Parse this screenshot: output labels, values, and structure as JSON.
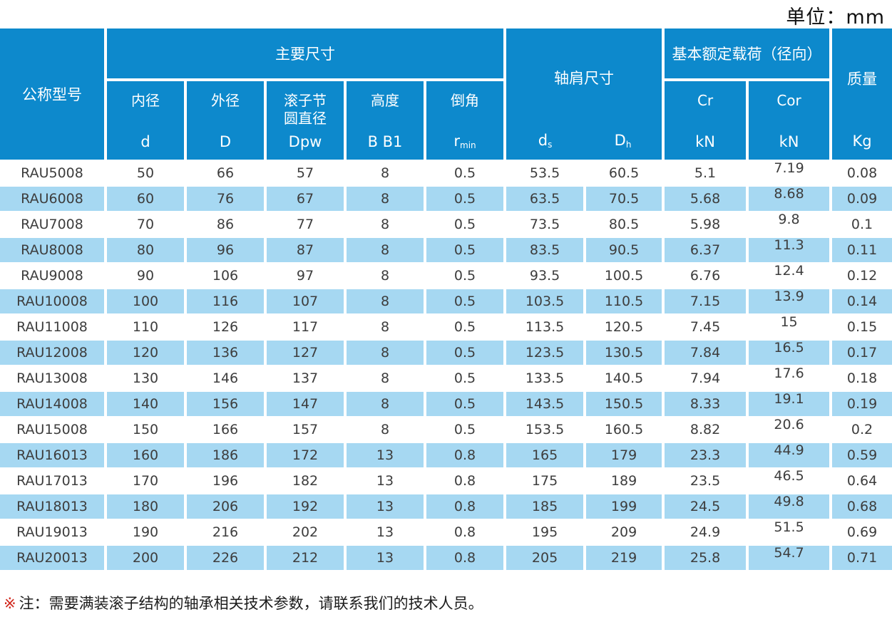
{
  "unit_label": "单位：mm",
  "table": {
    "header": {
      "model": "公称型号",
      "main_dims": "主要尺寸",
      "shoulder_dims": "轴肩尺寸",
      "load_rating": "基本额定载荷（径向）",
      "mass": "质量",
      "mass_unit": "Kg",
      "sub_cols": {
        "inner": {
          "label": "内径",
          "symbol": "d"
        },
        "outer": {
          "label": "外径",
          "symbol": "D"
        },
        "pitch": {
          "label": "滚子节\n圆直径",
          "symbol": "Dpw"
        },
        "height": {
          "label": "高度",
          "symbol": "B  B1"
        },
        "chamfer": {
          "label": "倒角",
          "symbol_main": "r",
          "symbol_sub": "min"
        }
      },
      "shoulder_sub": {
        "ds_main": "d",
        "ds_sub": "s",
        "dh_main": "D",
        "dh_sub": "h"
      },
      "cr": {
        "label": "Cr",
        "unit": "kN"
      },
      "cor": {
        "label": "Cor",
        "unit": "kN"
      }
    },
    "col_keys": [
      "model",
      "d",
      "D",
      "Dpw",
      "B-B1",
      "r-min",
      "ds",
      "Dh",
      "Cr",
      "Cor",
      "Kg"
    ],
    "rows": [
      [
        "RAU5008",
        "50",
        "66",
        "57",
        "8",
        "0.5",
        "53.5",
        "60.5",
        "5.1",
        "7.19",
        "0.08"
      ],
      [
        "RAU6008",
        "60",
        "76",
        "67",
        "8",
        "0.5",
        "63.5",
        "70.5",
        "5.68",
        "8.68",
        "0.09"
      ],
      [
        "RAU7008",
        "70",
        "86",
        "77",
        "8",
        "0.5",
        "73.5",
        "80.5",
        "5.98",
        "9.8",
        "0.1"
      ],
      [
        "RAU8008",
        "80",
        "96",
        "87",
        "8",
        "0.5",
        "83.5",
        "90.5",
        "6.37",
        "11.3",
        "0.11"
      ],
      [
        "RAU9008",
        "90",
        "106",
        "97",
        "8",
        "0.5",
        "93.5",
        "100.5",
        "6.76",
        "12.4",
        "0.12"
      ],
      [
        "RAU10008",
        "100",
        "116",
        "107",
        "8",
        "0.5",
        "103.5",
        "110.5",
        "7.15",
        "13.9",
        "0.14"
      ],
      [
        "RAU11008",
        "110",
        "126",
        "117",
        "8",
        "0.5",
        "113.5",
        "120.5",
        "7.45",
        "15",
        "0.15"
      ],
      [
        "RAU12008",
        "120",
        "136",
        "127",
        "8",
        "0.5",
        "123.5",
        "130.5",
        "7.84",
        "16.5",
        "0.17"
      ],
      [
        "RAU13008",
        "130",
        "146",
        "137",
        "8",
        "0.5",
        "133.5",
        "140.5",
        "7.94",
        "17.6",
        "0.18"
      ],
      [
        "RAU14008",
        "140",
        "156",
        "147",
        "8",
        "0.5",
        "143.5",
        "150.5",
        "8.33",
        "19.1",
        "0.19"
      ],
      [
        "RAU15008",
        "150",
        "166",
        "157",
        "8",
        "0.5",
        "153.5",
        "160.5",
        "8.82",
        "20.6",
        "0.2"
      ],
      [
        "RAU16013",
        "160",
        "186",
        "172",
        "13",
        "0.8",
        "165",
        "179",
        "23.3",
        "44.9",
        "0.59"
      ],
      [
        "RAU17013",
        "170",
        "196",
        "182",
        "13",
        "0.8",
        "175",
        "189",
        "23.5",
        "46.5",
        "0.64"
      ],
      [
        "RAU18013",
        "180",
        "206",
        "192",
        "13",
        "0.8",
        "185",
        "199",
        "24.5",
        "49.8",
        "0.68"
      ],
      [
        "RAU19013",
        "190",
        "216",
        "202",
        "13",
        "0.8",
        "195",
        "209",
        "24.9",
        "51.5",
        "0.69"
      ],
      [
        "RAU20013",
        "200",
        "226",
        "212",
        "13",
        "0.8",
        "205",
        "219",
        "25.8",
        "54.7",
        "0.71"
      ]
    ]
  },
  "footer_note": {
    "mark": "※",
    "text": "注：需要满装滚子结构的轴承相关技术参数，请联系我们的技术人员。"
  }
}
